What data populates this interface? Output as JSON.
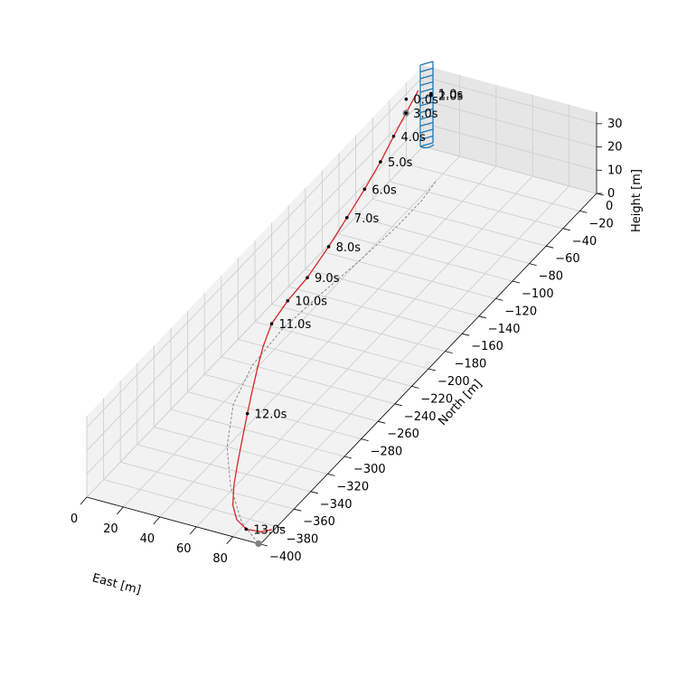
{
  "chart_data": {
    "type": "line",
    "projection": "3d",
    "xlabel": "East [m]",
    "ylabel": "North [m]",
    "zlabel": "Height [m]",
    "xlim": [
      0,
      95
    ],
    "ylim": [
      -400,
      0
    ],
    "zlim": [
      0,
      35
    ],
    "x_ticks": [
      0,
      20,
      40,
      60,
      80
    ],
    "y_ticks": [
      -400,
      -380,
      -360,
      -340,
      -320,
      -300,
      -280,
      -260,
      -240,
      -220,
      -200,
      -180,
      -160,
      -140,
      -120,
      -100,
      -80,
      -60,
      -40,
      -20,
      0
    ],
    "z_ticks": [
      0,
      10,
      20,
      30
    ],
    "grid": true,
    "series": [
      {
        "style": "solid",
        "color": "#d62728",
        "points": [
          {
            "x": 4.0,
            "y": -14.3,
            "z": 30.4
          },
          {
            "x": 3.4,
            "y": -27.7,
            "z": 25.5
          },
          {
            "x": 4.1,
            "y": -43.9,
            "z": 21.8
          },
          {
            "x": 5.3,
            "y": -62.1,
            "z": 17.9
          },
          {
            "x": 5.6,
            "y": -81.7,
            "z": 13.6
          },
          {
            "x": 5.6,
            "y": -102.7,
            "z": 9.3
          },
          {
            "x": 5.6,
            "y": -124.4,
            "z": 5.0
          },
          {
            "x": 5.2,
            "y": -148.9,
            "z": 0.8
          },
          {
            "x": 5.5,
            "y": -172.9,
            "z": 0.0
          },
          {
            "x": 8.1,
            "y": -197.7,
            "z": 0.0
          },
          {
            "x": 13.8,
            "y": -220.1,
            "z": 0.0
          },
          {
            "x": 20.0,
            "y": -240.0,
            "z": 0.0
          },
          {
            "x": 27.4,
            "y": -262.6,
            "z": 0.0
          },
          {
            "x": 35.0,
            "y": -285.0,
            "z": 0.0
          },
          {
            "x": 43.3,
            "y": -309.0,
            "z": 0.0
          },
          {
            "x": 51.9,
            "y": -333.6,
            "z": 0.0
          },
          {
            "x": 59.3,
            "y": -353.9,
            "z": 0.0
          },
          {
            "x": 66.8,
            "y": -371.4,
            "z": 0.0
          },
          {
            "x": 74.5,
            "y": -383.5,
            "z": 0.0
          },
          {
            "x": 82.6,
            "y": -389.9,
            "z": 0.0
          },
          {
            "x": 90.0,
            "y": -388.7,
            "z": 0.0
          },
          {
            "x": 94.0,
            "y": -384.0,
            "z": 0.0
          }
        ]
      },
      {
        "style": "dashed",
        "color": "#808080",
        "points": [
          {
            "x": 20.2,
            "y": -28.7,
            "z": 0.0
          },
          {
            "x": 22.0,
            "y": -50.0,
            "z": 0.0
          },
          {
            "x": 22.0,
            "y": -80.0,
            "z": 0.0
          },
          {
            "x": 20.0,
            "y": -120.0,
            "z": 0.0
          },
          {
            "x": 17.0,
            "y": -160.0,
            "z": 0.0
          },
          {
            "x": 15.0,
            "y": -200.0,
            "z": 0.0
          },
          {
            "x": 17.0,
            "y": -240.0,
            "z": 0.0
          },
          {
            "x": 25.0,
            "y": -280.0,
            "z": 0.0
          },
          {
            "x": 40.0,
            "y": -320.0,
            "z": 0.0
          },
          {
            "x": 58.0,
            "y": -355.0,
            "z": 0.0
          },
          {
            "x": 78.0,
            "y": -385.0,
            "z": 0.0
          },
          {
            "x": 94.0,
            "y": -400.0,
            "z": 0.0
          }
        ]
      }
    ],
    "time_markers": [
      {
        "label": "0.0s",
        "x": 0.0,
        "y": -20.0,
        "z": 27.9
      },
      {
        "label": "1.0s",
        "x": 10.9,
        "y": -14.2,
        "z": 30.4
      },
      {
        "label": "2.0s",
        "x": 10.9,
        "y": -14.2,
        "z": 29.6
      },
      {
        "label": "3.0s",
        "x": 3.4,
        "y": -27.7,
        "z": 25.5
      },
      {
        "label": "4.0s",
        "x": 4.1,
        "y": -43.9,
        "z": 21.8
      },
      {
        "label": "5.0s",
        "x": 5.3,
        "y": -62.1,
        "z": 17.9
      },
      {
        "label": "6.0s",
        "x": 5.6,
        "y": -81.7,
        "z": 13.6
      },
      {
        "label": "7.0s",
        "x": 5.6,
        "y": -102.7,
        "z": 9.3
      },
      {
        "label": "8.0s",
        "x": 5.6,
        "y": -124.4,
        "z": 5.0
      },
      {
        "label": "9.0s",
        "x": 5.2,
        "y": -148.9,
        "z": 0.8
      },
      {
        "label": "10.0s",
        "x": 5.5,
        "y": -172.9,
        "z": 0.0
      },
      {
        "label": "11.0s",
        "x": 8.1,
        "y": -197.7,
        "z": 0.0
      },
      {
        "label": "12.0s",
        "x": 35.0,
        "y": -285.0,
        "z": 0.0
      },
      {
        "label": "13.0s",
        "x": 82.6,
        "y": -389.9,
        "z": 0.0
      }
    ],
    "endpoints": [
      {
        "x": 3.4,
        "y": -27.7,
        "z": 25.5,
        "color": "#808080"
      },
      {
        "x": 94.0,
        "y": -400.0,
        "z": 0.0,
        "color": "#808080"
      }
    ],
    "tower": {
      "x": 0,
      "y": 0,
      "z_bottom": 0,
      "z_top": 35,
      "color": "#1f77b4"
    }
  }
}
